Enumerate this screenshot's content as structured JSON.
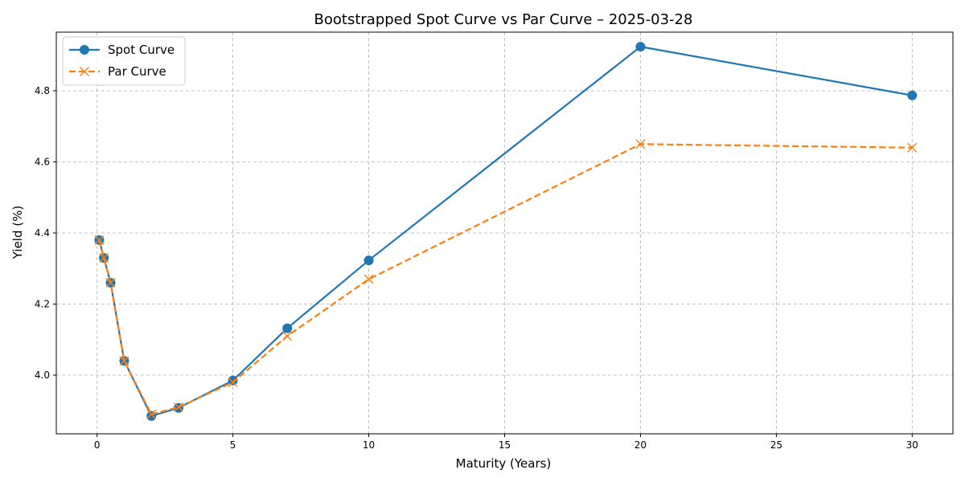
{
  "chart_data": {
    "type": "line",
    "title": "Bootstrapped Spot Curve vs Par Curve – 2025-03-28",
    "xlabel": "Maturity (Years)",
    "ylabel": "Yield (%)",
    "xlim": [
      -1.5,
      31.5
    ],
    "ylim": [
      3.835,
      4.965
    ],
    "x_ticks": [
      0,
      5,
      10,
      15,
      20,
      25,
      30
    ],
    "x_tick_labels": [
      "0",
      "5",
      "10",
      "15",
      "20",
      "25",
      "30"
    ],
    "y_ticks": [
      4.0,
      4.2,
      4.4,
      4.6,
      4.8
    ],
    "y_tick_labels": [
      "4.0",
      "4.2",
      "4.4",
      "4.6",
      "4.8"
    ],
    "grid": true,
    "legend_position": "top-left",
    "series": [
      {
        "name": "Spot Curve",
        "color": "#1f77b4",
        "line_style": "solid",
        "marker": "circle",
        "points": [
          {
            "x": 0.083,
            "y": 4.38
          },
          {
            "x": 0.25,
            "y": 4.33
          },
          {
            "x": 0.5,
            "y": 4.26
          },
          {
            "x": 1,
            "y": 4.04
          },
          {
            "x": 2,
            "y": 3.885
          },
          {
            "x": 3,
            "y": 3.908
          },
          {
            "x": 5,
            "y": 3.985
          },
          {
            "x": 7,
            "y": 4.132
          },
          {
            "x": 10,
            "y": 4.323
          },
          {
            "x": 20,
            "y": 4.924
          },
          {
            "x": 30,
            "y": 4.787
          }
        ]
      },
      {
        "name": "Par Curve",
        "color": "#ff7f0e",
        "line_style": "dashed",
        "marker": "x",
        "points": [
          {
            "x": 0.083,
            "y": 4.38
          },
          {
            "x": 0.25,
            "y": 4.33
          },
          {
            "x": 0.5,
            "y": 4.26
          },
          {
            "x": 1,
            "y": 4.04
          },
          {
            "x": 2,
            "y": 3.89
          },
          {
            "x": 3,
            "y": 3.91
          },
          {
            "x": 5,
            "y": 3.98
          },
          {
            "x": 7,
            "y": 4.11
          },
          {
            "x": 10,
            "y": 4.27
          },
          {
            "x": 20,
            "y": 4.65
          },
          {
            "x": 30,
            "y": 4.64
          }
        ]
      }
    ]
  }
}
